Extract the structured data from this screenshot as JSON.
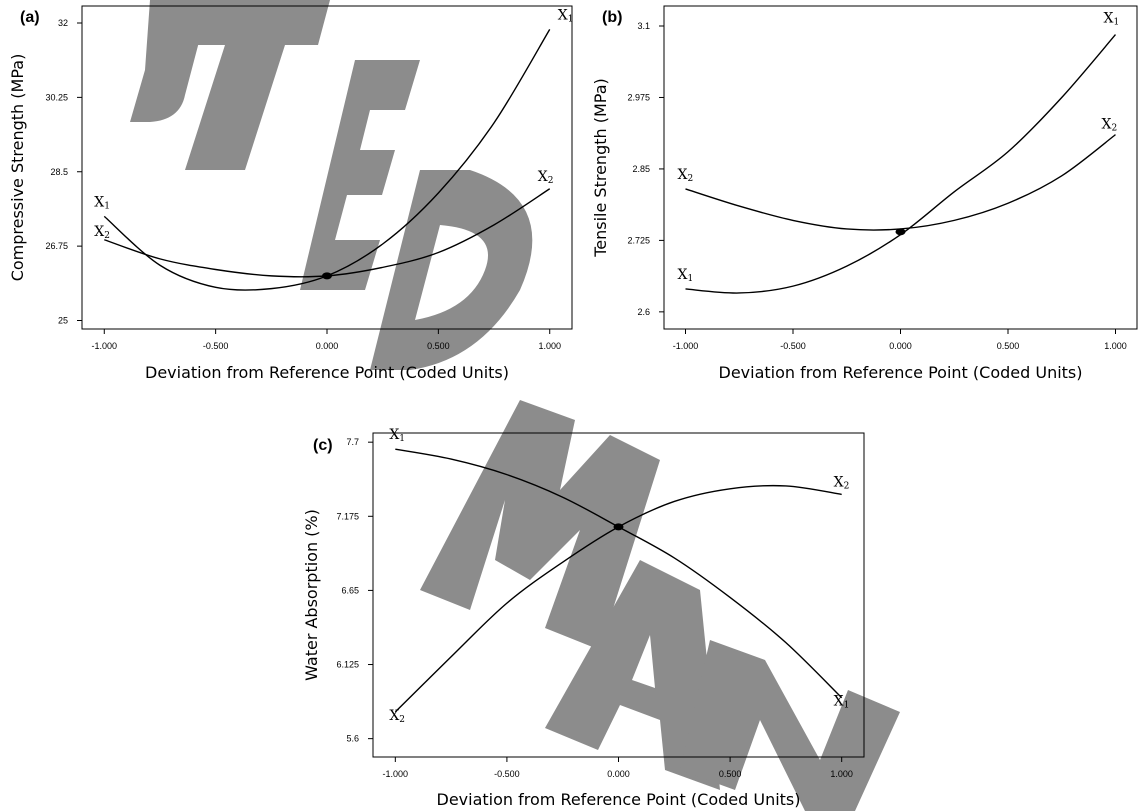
{
  "chart_data": [
    {
      "type": "line",
      "panel_label": "(a)",
      "xlabel": "Deviation from Reference Point (Coded Units)",
      "ylabel": "Compressive Strength (MPa)",
      "x_ticks": [
        "-1.000",
        "-0.500",
        "0.000",
        "0.500",
        "1.000"
      ],
      "y_ticks": [
        "25",
        "26.75",
        "28.5",
        "30.25",
        "32"
      ],
      "xlim": [
        -1.1,
        1.1
      ],
      "ylim": [
        24.8,
        32.4
      ],
      "x": [
        -1.0,
        -0.75,
        -0.5,
        -0.25,
        0.0,
        0.25,
        0.5,
        0.75,
        1.0
      ],
      "series": [
        {
          "name": "X1",
          "values": [
            27.45,
            26.3,
            25.78,
            25.75,
            26.05,
            26.8,
            28.0,
            29.65,
            31.85
          ]
        },
        {
          "name": "X2",
          "values": [
            26.9,
            26.45,
            26.2,
            26.05,
            26.05,
            26.25,
            26.6,
            27.25,
            28.1
          ]
        }
      ],
      "reference_point": {
        "x": 0.0,
        "y": 26.05
      },
      "grid": false
    },
    {
      "type": "line",
      "panel_label": "(b)",
      "xlabel": "Deviation from Reference Point (Coded Units)",
      "ylabel": "Tensile Strength (MPa)",
      "x_ticks": [
        "-1.000",
        "-0.500",
        "0.000",
        "0.500",
        "1.000"
      ],
      "y_ticks": [
        "2.6",
        "2.725",
        "2.85",
        "2.975",
        "3.1"
      ],
      "xlim": [
        -1.1,
        1.1
      ],
      "ylim": [
        2.57,
        3.135
      ],
      "x": [
        -1.0,
        -0.75,
        -0.5,
        -0.25,
        0.0,
        0.25,
        0.5,
        0.75,
        1.0
      ],
      "series": [
        {
          "name": "X1",
          "values": [
            2.64,
            2.633,
            2.645,
            2.68,
            2.735,
            2.81,
            2.88,
            2.975,
            3.085
          ]
        },
        {
          "name": "X2",
          "values": [
            2.815,
            2.785,
            2.76,
            2.745,
            2.745,
            2.76,
            2.79,
            2.838,
            2.91
          ]
        }
      ],
      "reference_point": {
        "x": 0.0,
        "y": 2.74
      },
      "grid": false
    },
    {
      "type": "line",
      "panel_label": "(c)",
      "xlabel": "Deviation from Reference Point (Coded Units)",
      "ylabel": "Water Absorption (%)",
      "x_ticks": [
        "-1.000",
        "-0.500",
        "0.000",
        "0.500",
        "1.000"
      ],
      "y_ticks": [
        "5.6",
        "6.125",
        "6.65",
        "7.175",
        "7.7"
      ],
      "xlim": [
        -1.1,
        1.1
      ],
      "ylim": [
        5.47,
        7.765
      ],
      "x": [
        -1.0,
        -0.75,
        -0.5,
        -0.25,
        0.0,
        0.25,
        0.5,
        0.75,
        1.0
      ],
      "series": [
        {
          "name": "X1",
          "values": [
            7.65,
            7.58,
            7.47,
            7.31,
            7.1,
            6.88,
            6.6,
            6.28,
            5.89
          ]
        },
        {
          "name": "X2",
          "values": [
            5.79,
            6.18,
            6.56,
            6.85,
            7.1,
            7.28,
            7.37,
            7.39,
            7.33
          ]
        }
      ],
      "reference_point": {
        "x": 0.0,
        "y": 7.1
      },
      "grid": false
    }
  ],
  "series_label_parts": {
    "X1": [
      "X",
      "1"
    ],
    "X2": [
      "X",
      "2"
    ]
  },
  "colors": {
    "curve": "#000000",
    "watermark": "#8c8c8c",
    "background": "#ffffff"
  },
  "watermark_text": "ACCEPTED MANUSCRIPT"
}
